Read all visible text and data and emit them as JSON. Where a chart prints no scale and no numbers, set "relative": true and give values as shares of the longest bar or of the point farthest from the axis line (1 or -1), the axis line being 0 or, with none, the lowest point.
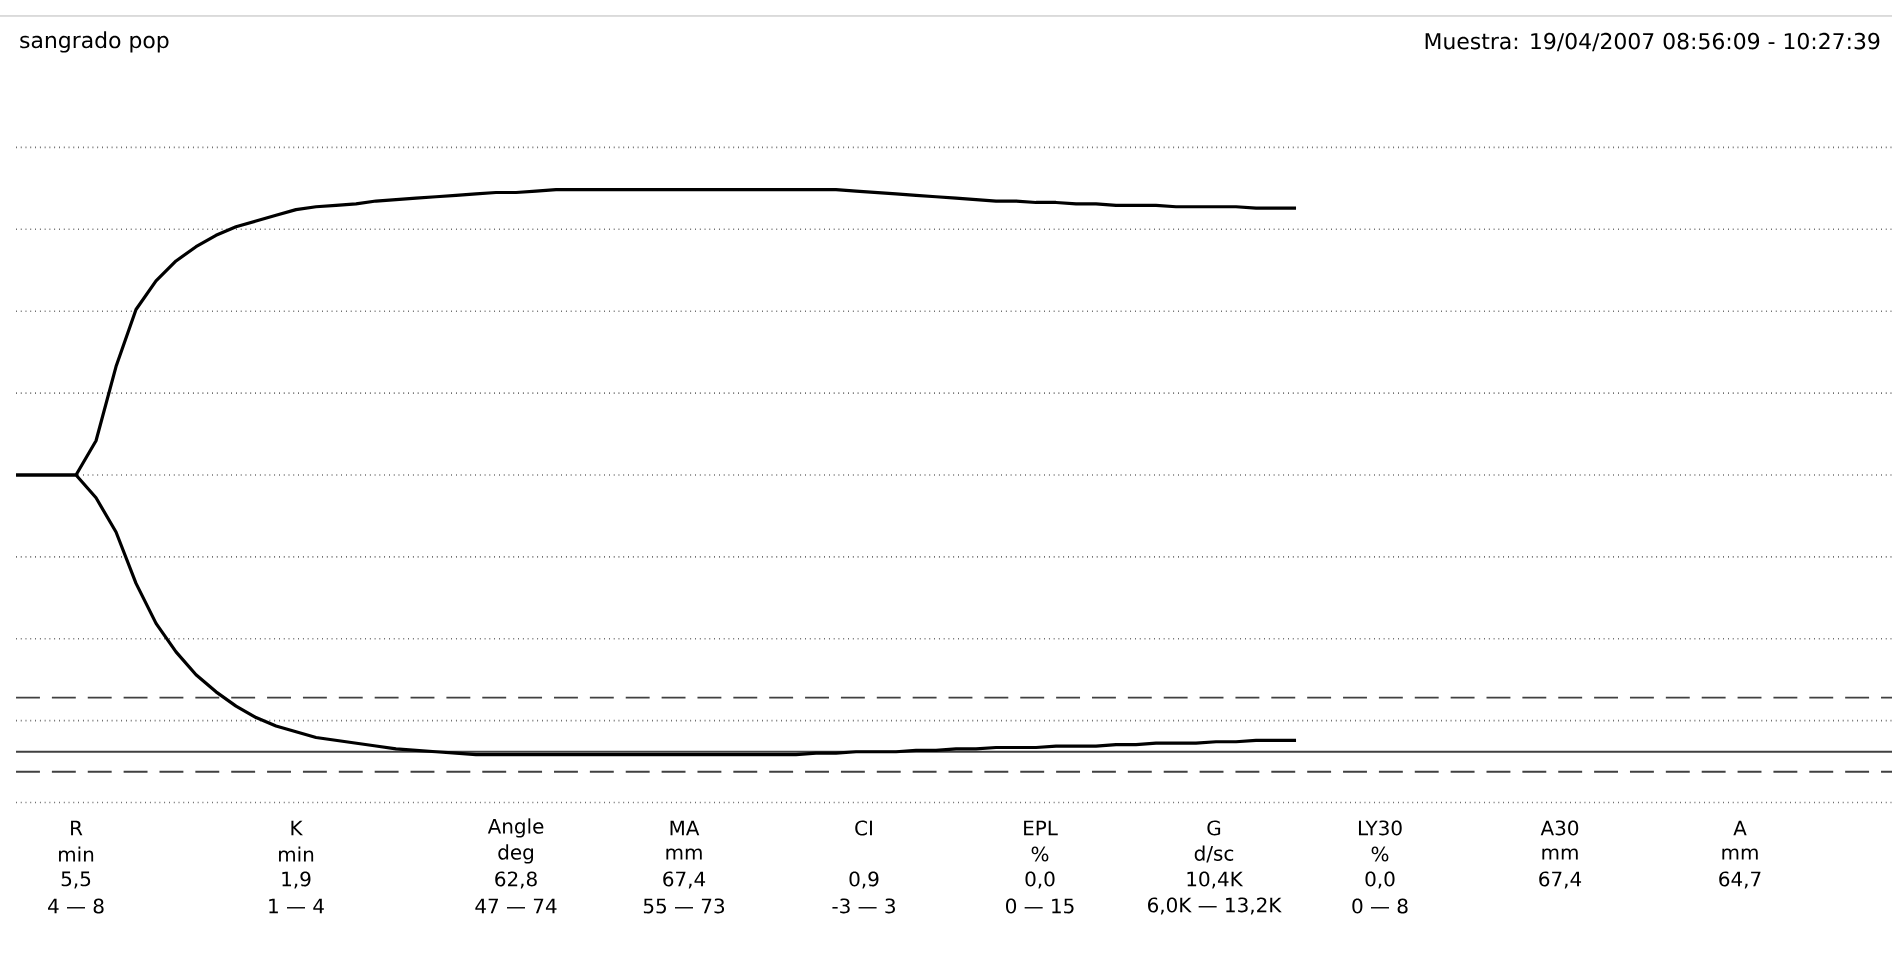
{
  "chart_data": {
    "type": "line",
    "relative": true,
    "title": "sangrado pop",
    "subtitle": "Muestra: 19/04/2007 08:56:09 - 10:27:39",
    "categories": [
      null,
      null,
      null,
      null,
      null,
      null,
      null,
      null,
      null,
      null,
      null,
      null,
      null,
      null,
      null,
      null,
      null,
      null,
      null,
      null,
      null,
      null,
      null,
      null,
      null,
      null,
      null,
      null,
      null,
      null,
      null,
      null,
      null,
      null,
      null,
      null,
      null,
      null,
      null,
      null,
      null,
      null,
      null,
      null,
      null,
      null,
      null,
      null,
      null,
      null,
      null,
      null,
      null,
      null,
      null,
      null,
      null,
      null,
      null,
      null,
      null,
      null,
      null,
      null,
      null
    ],
    "series": [
      {
        "color": "#000000",
        "values": [
          0,
          0,
          0,
          0,
          0.12,
          0.38,
          0.58,
          0.68,
          0.75,
          0.8,
          0.84,
          0.87,
          0.89,
          0.91,
          0.93,
          0.94,
          0.945,
          0.95,
          0.96,
          0.965,
          0.97,
          0.975,
          0.98,
          0.985,
          0.99,
          0.99,
          0.995,
          1.0,
          1.0,
          1.0,
          1.0,
          1.0,
          1.0,
          1.0,
          1.0,
          1.0,
          1.0,
          1.0,
          1.0,
          1.0,
          1.0,
          1.0,
          0.995,
          0.99,
          0.985,
          0.98,
          0.975,
          0.97,
          0.965,
          0.96,
          0.96,
          0.955,
          0.955,
          0.95,
          0.95,
          0.945,
          0.945,
          0.945,
          0.94,
          0.94,
          0.94,
          0.94,
          0.935,
          0.935,
          0.935
        ]
      },
      {
        "color": "#000000",
        "values": [
          0,
          0,
          0,
          0,
          -0.08,
          -0.2,
          -0.38,
          -0.52,
          -0.62,
          -0.7,
          -0.76,
          -0.81,
          -0.85,
          -0.88,
          -0.9,
          -0.92,
          -0.93,
          -0.94,
          -0.95,
          -0.96,
          -0.965,
          -0.97,
          -0.975,
          -0.98,
          -0.98,
          -0.98,
          -0.98,
          -0.98,
          -0.98,
          -0.98,
          -0.98,
          -0.98,
          -0.98,
          -0.98,
          -0.98,
          -0.98,
          -0.98,
          -0.98,
          -0.98,
          -0.98,
          -0.975,
          -0.975,
          -0.97,
          -0.97,
          -0.97,
          -0.965,
          -0.965,
          -0.96,
          -0.96,
          -0.955,
          -0.955,
          -0.955,
          -0.95,
          -0.95,
          -0.95,
          -0.945,
          -0.945,
          -0.94,
          -0.94,
          -0.94,
          -0.935,
          -0.935,
          -0.93,
          -0.93,
          -0.93
        ]
      }
    ],
    "ref_lines": [
      {
        "axis": "y",
        "value": -0.78,
        "line_style": "dashed"
      },
      {
        "axis": "y",
        "value": -0.97,
        "line_style": "solid"
      },
      {
        "axis": "y",
        "value": -1.04,
        "line_style": "dashed"
      }
    ],
    "grid": "y",
    "marker": "none",
    "line_style": "solid",
    "annotations": [
      "R",
      "min",
      "5,5",
      "4 — 8",
      "K",
      "min",
      "1,9",
      "1 — 4",
      "Angle",
      "deg",
      "62,8",
      "47 — 74",
      "MA",
      "mm",
      "67,4",
      "55 — 73",
      "CI",
      "0,9",
      "-3 — 3",
      "EPL",
      "%",
      "0,0",
      "0 — 15",
      "G",
      "d/sc",
      "10,4K",
      "6,0K — 13,2K",
      "LY30",
      "%",
      "0,0",
      "0 — 8",
      "A30",
      "mm",
      "67,4",
      "A",
      "mm",
      "64,7"
    ]
  }
}
